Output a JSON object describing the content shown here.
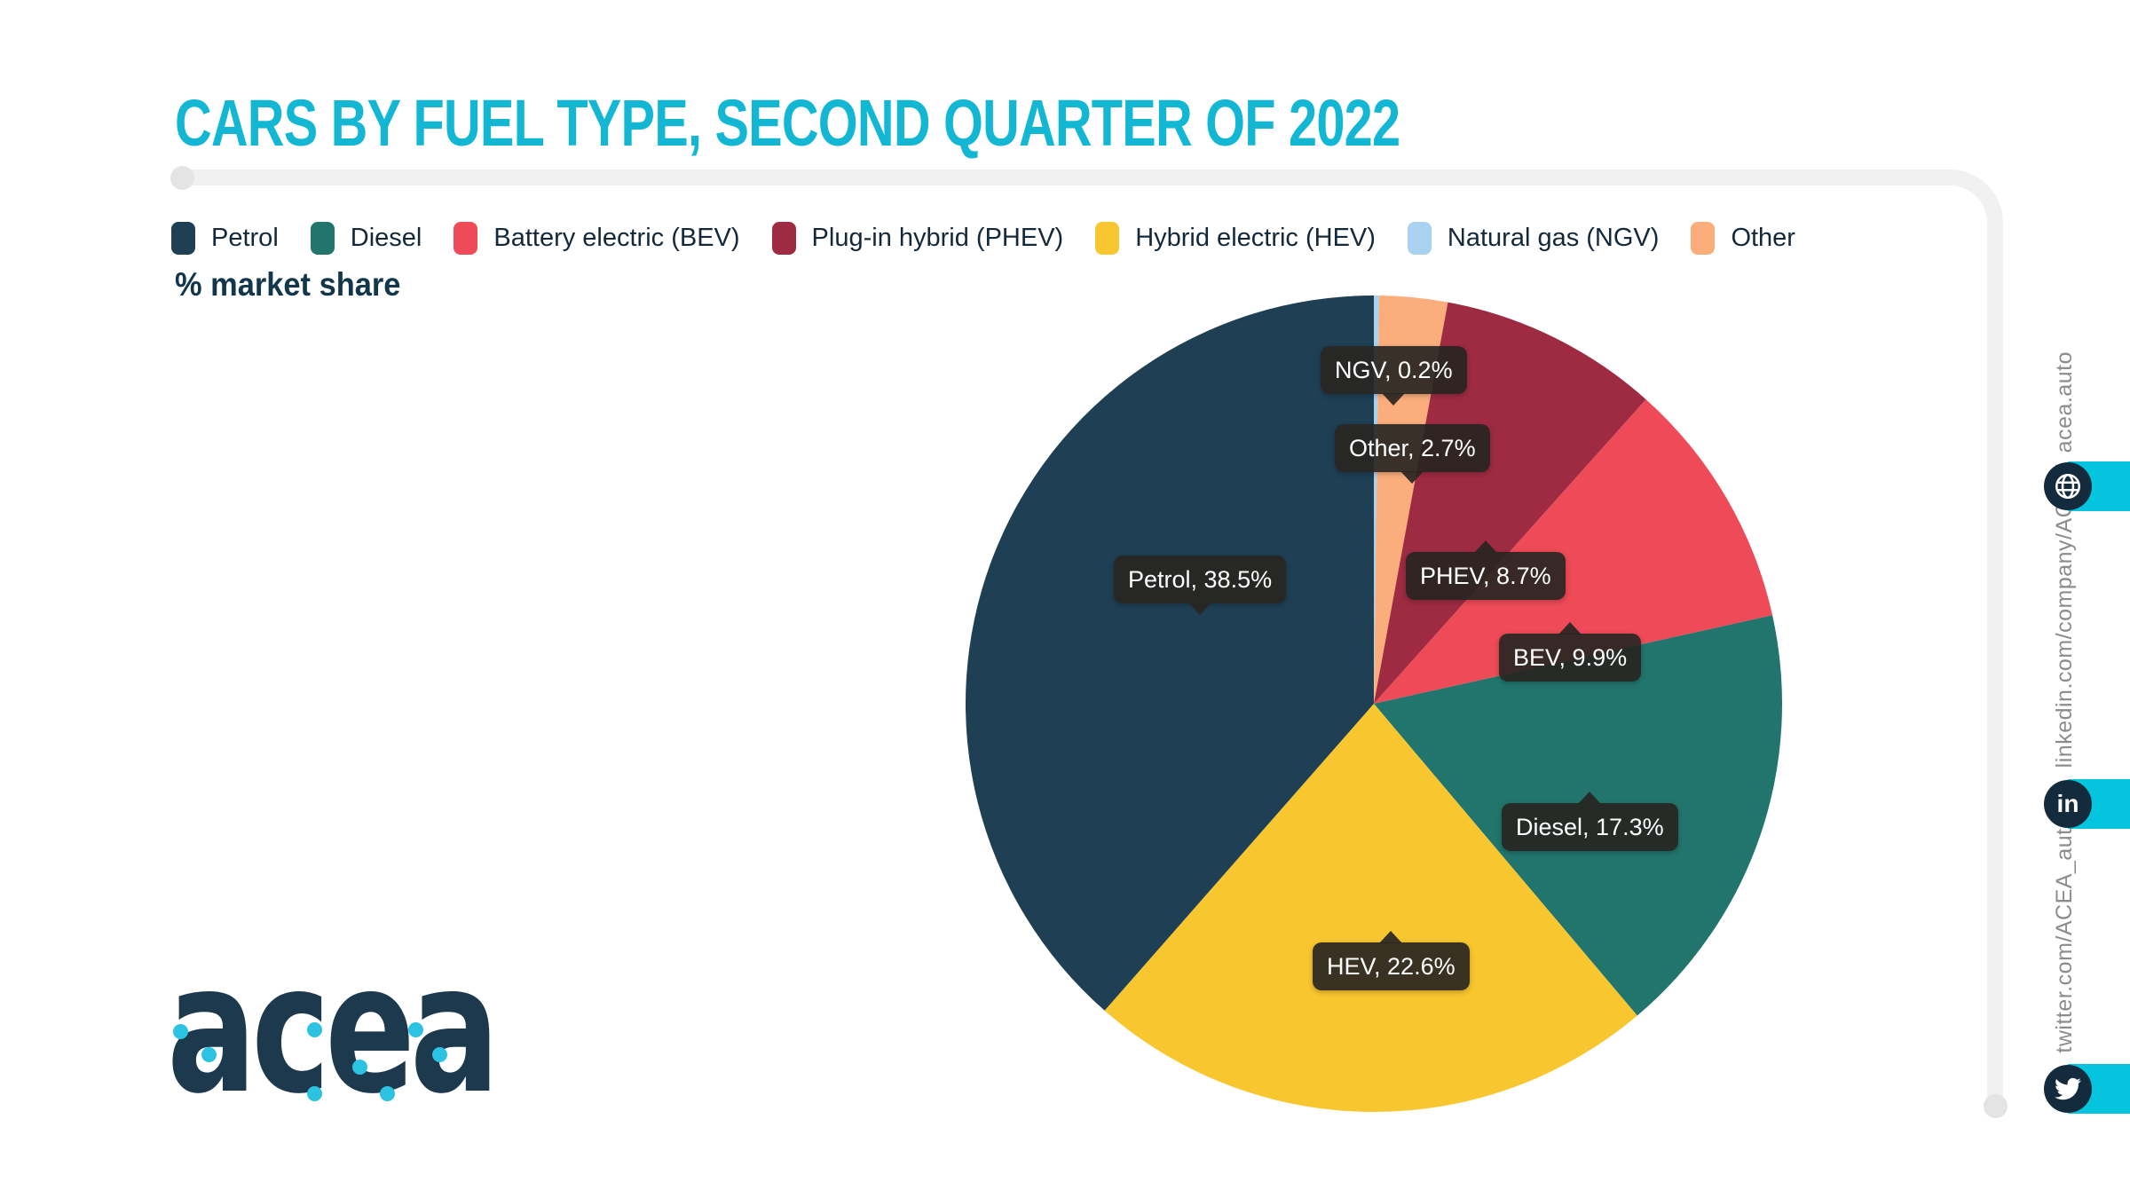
{
  "header": {
    "title": "CARS BY FUEL TYPE, SECOND QUARTER OF 2022"
  },
  "unit_note": "% market share",
  "accent": {
    "title_cyan": "#13B7D3",
    "bar_cyan": "#04C4DE",
    "dot_cyan": "#2CC3E2",
    "navy": "#142B3D",
    "frame_gray": "#F1F1F1"
  },
  "legend": {
    "items": [
      {
        "label": "Petrol",
        "color": "#1E3F54"
      },
      {
        "label": "Diesel",
        "color": "#21756C"
      },
      {
        "label": "Battery electric (BEV)",
        "color": "#EE4A57"
      },
      {
        "label": "Plug-in hybrid (PHEV)",
        "color": "#9E2B42"
      },
      {
        "label": "Hybrid electric (HEV)",
        "color": "#F8C62F"
      },
      {
        "label": "Natural gas (NGV)",
        "color": "#A8D2F0"
      },
      {
        "label": "Other",
        "color": "#FBAE7C"
      }
    ]
  },
  "chart_data": {
    "type": "pie",
    "title": "CARS BY FUEL TYPE, SECOND QUARTER OF 2022",
    "unit": "% market share",
    "direction": "clockwise",
    "start_angle_deg": 0,
    "legend_position": "top",
    "slices": [
      {
        "label": "NGV",
        "value": 0.2,
        "color": "#A8D2F0",
        "tooltip": "NGV, 0.2%"
      },
      {
        "label": "Other",
        "value": 2.7,
        "color": "#FBAE7C",
        "tooltip": "Other, 2.7%"
      },
      {
        "label": "PHEV",
        "value": 8.7,
        "color": "#9E2B42",
        "tooltip": "PHEV, 8.7%"
      },
      {
        "label": "BEV",
        "value": 9.9,
        "color": "#EE4A57",
        "tooltip": "BEV, 9.9%"
      },
      {
        "label": "Diesel",
        "value": 17.3,
        "color": "#21756C",
        "tooltip": "Diesel, 17.3%"
      },
      {
        "label": "HEV",
        "value": 22.6,
        "color": "#F8C62F",
        "tooltip": "HEV, 22.6%"
      },
      {
        "label": "Petrol",
        "value": 38.5,
        "color": "#1E3F54",
        "tooltip": "Petrol, 38.5%"
      }
    ]
  },
  "logo": {
    "text": "acea"
  },
  "sidebar": {
    "links": [
      {
        "label": "acea.auto",
        "icon": "globe"
      },
      {
        "label": "linkedin.com/company/ACEA/",
        "icon": "linkedin"
      },
      {
        "label": "twitter.com/ACEA_auto",
        "icon": "twitter"
      }
    ]
  }
}
